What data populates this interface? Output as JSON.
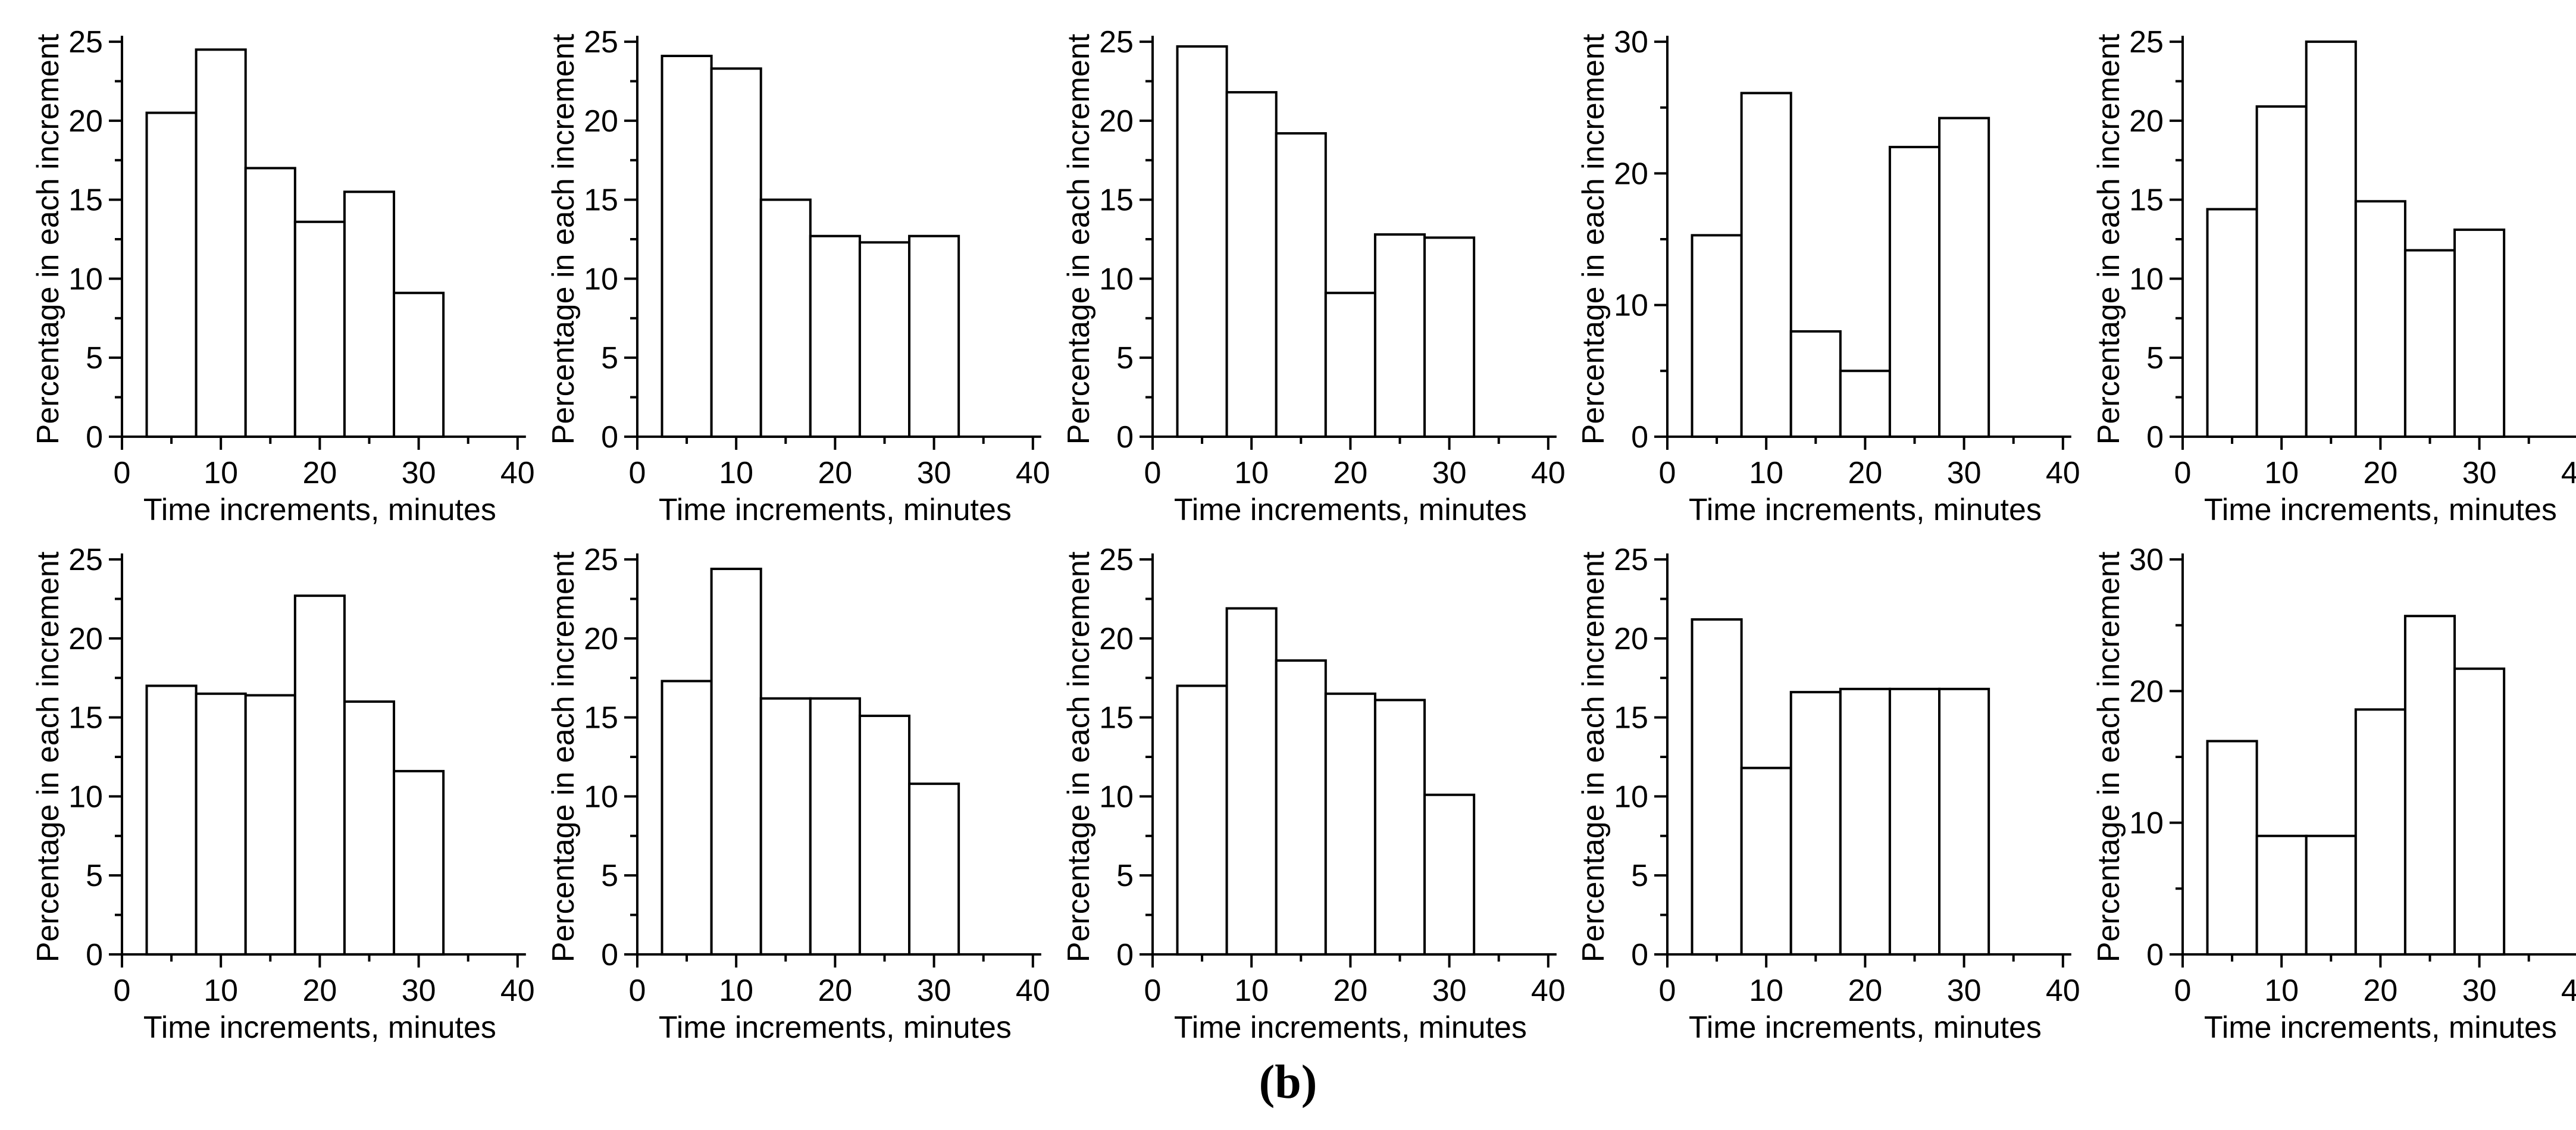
{
  "page": {
    "caption": "(b)",
    "background_color": "#ffffff",
    "axis_color": "#000000",
    "bar_fill": "#ffffff",
    "bar_stroke": "#000000"
  },
  "chart_shared": {
    "xlabel": "Time increments, minutes",
    "ylabel": "Percentage in each increment",
    "xlim": [
      0,
      40
    ],
    "xticks": [
      0,
      10,
      20,
      30,
      40
    ],
    "xminor": [
      5,
      15,
      25,
      35
    ],
    "bins": {
      "start": 2.5,
      "width": 5
    },
    "grid": "off",
    "legend": "none"
  },
  "chart_data": [
    {
      "type": "bar",
      "title": "",
      "row": 1,
      "col": 1,
      "xlabel": "Time increments, minutes",
      "ylabel": "Percentage in each increment",
      "bin_edges": [
        2.5,
        7.5,
        12.5,
        17.5,
        22.5,
        27.5,
        32.5
      ],
      "values": [
        20.5,
        24.5,
        17.0,
        13.6,
        15.5,
        9.1
      ],
      "ylim": [
        0,
        25
      ],
      "yticks": [
        0,
        5,
        10,
        15,
        20,
        25
      ],
      "yminor": [
        2.5,
        7.5,
        12.5,
        17.5,
        22.5
      ]
    },
    {
      "type": "bar",
      "title": "",
      "row": 1,
      "col": 2,
      "xlabel": "Time increments, minutes",
      "ylabel": "Percentage in each increment",
      "bin_edges": [
        2.5,
        7.5,
        12.5,
        17.5,
        22.5,
        27.5,
        32.5
      ],
      "values": [
        24.1,
        23.3,
        15.0,
        12.7,
        12.3,
        12.7
      ],
      "ylim": [
        0,
        25
      ],
      "yticks": [
        0,
        5,
        10,
        15,
        20,
        25
      ],
      "yminor": [
        2.5,
        7.5,
        12.5,
        17.5,
        22.5
      ]
    },
    {
      "type": "bar",
      "title": "",
      "row": 1,
      "col": 3,
      "xlabel": "Time increments, minutes",
      "ylabel": "Percentage in each increment",
      "bin_edges": [
        2.5,
        7.5,
        12.5,
        17.5,
        22.5,
        27.5,
        32.5
      ],
      "values": [
        24.7,
        21.8,
        19.2,
        9.1,
        12.8,
        12.6
      ],
      "ylim": [
        0,
        25
      ],
      "yticks": [
        0,
        5,
        10,
        15,
        20,
        25
      ],
      "yminor": [
        2.5,
        7.5,
        12.5,
        17.5,
        22.5
      ]
    },
    {
      "type": "bar",
      "title": "",
      "row": 1,
      "col": 4,
      "xlabel": "Time increments, minutes",
      "ylabel": "Percentage in each increment",
      "bin_edges": [
        2.5,
        7.5,
        12.5,
        17.5,
        22.5,
        27.5,
        32.5
      ],
      "values": [
        15.3,
        26.1,
        8.0,
        5.0,
        22.0,
        24.2
      ],
      "ylim": [
        0,
        30
      ],
      "yticks": [
        0,
        10,
        20,
        30
      ],
      "yminor": [
        5,
        15,
        25
      ]
    },
    {
      "type": "bar",
      "title": "",
      "row": 1,
      "col": 5,
      "xlabel": "Time increments, minutes",
      "ylabel": "Percentage in each increment",
      "bin_edges": [
        2.5,
        7.5,
        12.5,
        17.5,
        22.5,
        27.5,
        32.5
      ],
      "values": [
        14.4,
        20.9,
        25.0,
        14.9,
        11.8,
        13.1
      ],
      "ylim": [
        0,
        25
      ],
      "yticks": [
        0,
        5,
        10,
        15,
        20,
        25
      ],
      "yminor": [
        2.5,
        7.5,
        12.5,
        17.5,
        22.5
      ]
    },
    {
      "type": "bar",
      "title": "",
      "row": 2,
      "col": 1,
      "xlabel": "Time increments, minutes",
      "ylabel": "Percentage in each increment",
      "bin_edges": [
        2.5,
        7.5,
        12.5,
        17.5,
        22.5,
        27.5,
        32.5
      ],
      "values": [
        17.0,
        16.5,
        16.4,
        22.7,
        16.0,
        11.6
      ],
      "ylim": [
        0,
        25
      ],
      "yticks": [
        0,
        5,
        10,
        15,
        20,
        25
      ],
      "yminor": [
        2.5,
        7.5,
        12.5,
        17.5,
        22.5
      ]
    },
    {
      "type": "bar",
      "title": "",
      "row": 2,
      "col": 2,
      "xlabel": "Time increments, minutes",
      "ylabel": "Percentage in each increment",
      "bin_edges": [
        2.5,
        7.5,
        12.5,
        17.5,
        22.5,
        27.5,
        32.5
      ],
      "values": [
        17.3,
        24.4,
        16.2,
        16.2,
        15.1,
        10.8
      ],
      "ylim": [
        0,
        25
      ],
      "yticks": [
        0,
        5,
        10,
        15,
        20,
        25
      ],
      "yminor": [
        2.5,
        7.5,
        12.5,
        17.5,
        22.5
      ]
    },
    {
      "type": "bar",
      "title": "",
      "row": 2,
      "col": 3,
      "xlabel": "Time increments, minutes",
      "ylabel": "Percentage in each increment",
      "bin_edges": [
        2.5,
        7.5,
        12.5,
        17.5,
        22.5,
        27.5,
        32.5
      ],
      "values": [
        17.0,
        21.9,
        18.6,
        16.5,
        16.1,
        10.1
      ],
      "ylim": [
        0,
        25
      ],
      "yticks": [
        0,
        5,
        10,
        15,
        20,
        25
      ],
      "yminor": [
        2.5,
        7.5,
        12.5,
        17.5,
        22.5
      ]
    },
    {
      "type": "bar",
      "title": "",
      "row": 2,
      "col": 4,
      "xlabel": "Time increments, minutes",
      "ylabel": "Percentage in each increment",
      "bin_edges": [
        2.5,
        7.5,
        12.5,
        17.5,
        22.5,
        27.5,
        32.5
      ],
      "values": [
        21.2,
        11.8,
        16.6,
        16.8,
        16.8,
        16.8
      ],
      "ylim": [
        0,
        25
      ],
      "yticks": [
        0,
        5,
        10,
        15,
        20,
        25
      ],
      "yminor": [
        2.5,
        7.5,
        12.5,
        17.5,
        22.5
      ]
    },
    {
      "type": "bar",
      "title": "",
      "row": 2,
      "col": 5,
      "xlabel": "Time increments, minutes",
      "ylabel": "Percentage in each increment",
      "bin_edges": [
        2.5,
        7.5,
        12.5,
        17.5,
        22.5,
        27.5,
        32.5
      ],
      "values": [
        16.2,
        9.0,
        9.0,
        18.6,
        25.7,
        21.7
      ],
      "ylim": [
        0,
        30
      ],
      "yticks": [
        0,
        10,
        20,
        30
      ],
      "yminor": [
        5,
        15,
        25
      ]
    }
  ]
}
